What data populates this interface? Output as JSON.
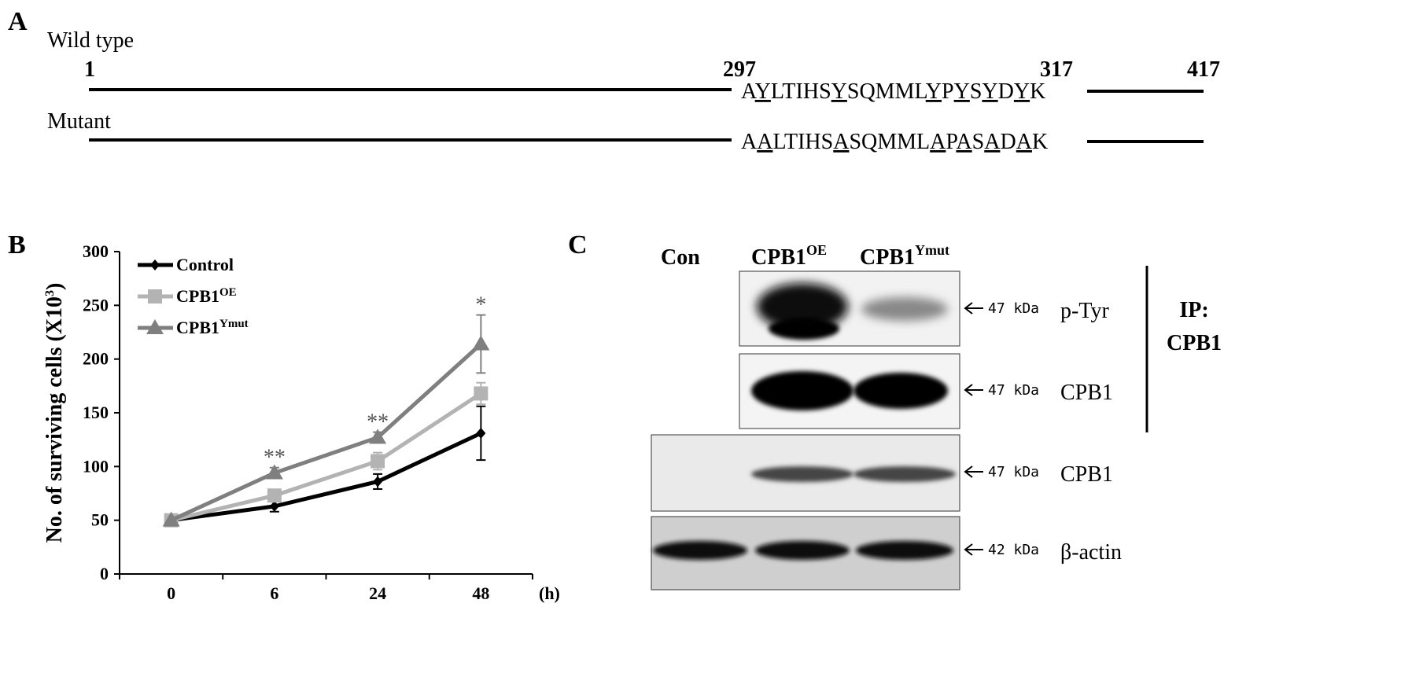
{
  "panel_a": {
    "label": "A",
    "wild_type": {
      "title": "Wild type",
      "segments": [
        "A",
        "Y",
        "LTIHS",
        "Y",
        "SQMML",
        "Y",
        "P",
        "Y",
        "S",
        "Y",
        "D",
        "Y",
        "K"
      ]
    },
    "mutant": {
      "title": "Mutant",
      "segments": [
        "A",
        "A",
        "LTIHS",
        "A",
        "SQMML",
        "A",
        "P",
        "A",
        "S",
        "A",
        "D",
        "A",
        "K"
      ]
    },
    "positions": [
      "1",
      "297",
      "317",
      "417"
    ]
  },
  "chart_data": {
    "type": "line",
    "panel_label": "B",
    "y_label": "No. of surviving cells (X10",
    "y_label_sup": "3",
    "y_label_end": ")",
    "x_label": "(h)",
    "categories": [
      "0",
      "6",
      "24",
      "48"
    ],
    "series": [
      {
        "name": "Control",
        "color": "#000000",
        "marker": "diamond",
        "values": [
          50,
          63,
          86,
          131
        ],
        "errors": [
          0,
          5,
          7,
          25
        ]
      },
      {
        "name": "CPB1",
        "name_sup": "OE",
        "color": "#b3b3b3",
        "marker": "square",
        "values": [
          50,
          73,
          105,
          168
        ],
        "errors": [
          0,
          3,
          8,
          10
        ]
      },
      {
        "name": "CPB1",
        "name_sup": "Ymut",
        "color": "#7f7f7f",
        "marker": "triangle",
        "values": [
          50,
          94,
          127,
          214
        ],
        "errors": [
          0,
          5,
          5,
          27
        ]
      }
    ],
    "annotations": [
      null,
      "**",
      "**",
      "*"
    ],
    "ylim": [
      0,
      300
    ],
    "yticks": [
      0,
      50,
      100,
      150,
      200,
      250,
      300
    ]
  },
  "panel_c": {
    "label": "C",
    "columns": [
      {
        "text": "Con"
      },
      {
        "text": "CPB1",
        "sup": "OE"
      },
      {
        "text": "CPB1",
        "sup": "Ymut"
      }
    ],
    "rows": [
      {
        "size": "47 kDa",
        "name": "p-Tyr"
      },
      {
        "size": "47 kDa",
        "name": "CPB1"
      },
      {
        "size": "47 kDa",
        "name": "CPB1"
      },
      {
        "size": "42 kDa",
        "name": "β-actin"
      }
    ],
    "ip_label": "IP:",
    "ip_target": "CPB1"
  }
}
